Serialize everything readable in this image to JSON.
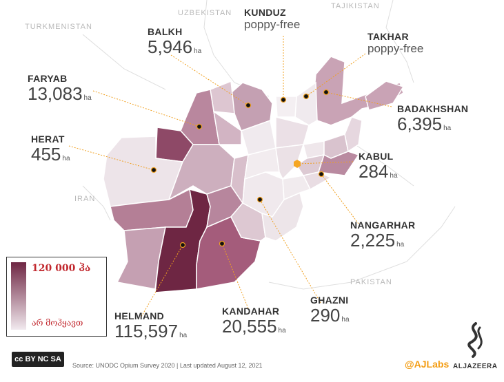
{
  "countries": [
    "UZBEKISTAN",
    "TAJIKISTAN",
    "TURKMENISTAN",
    "IRAN",
    "PAKISTAN"
  ],
  "provinces": {
    "kunduz": {
      "name": "KUNDUZ",
      "status": "poppy-free"
    },
    "takhar": {
      "name": "TAKHAR",
      "status": "poppy-free"
    },
    "balkh": {
      "name": "BALKH",
      "value": "5,946",
      "unit": "ha"
    },
    "faryab": {
      "name": "FARYAB",
      "value": "13,083",
      "unit": "ha"
    },
    "badakhshan": {
      "name": "BADAKHSHAN",
      "value": "6,395",
      "unit": "ha"
    },
    "herat": {
      "name": "HERAT",
      "value": "455",
      "unit": "ha"
    },
    "kabul": {
      "name": "KABUL",
      "value": "284",
      "unit": "ha"
    },
    "nangarhar": {
      "name": "NANGARHAR",
      "value": "2,225",
      "unit": "ha"
    },
    "ghazni": {
      "name": "GHAZNI",
      "value": "290",
      "unit": "ha"
    },
    "kandahar": {
      "name": "KANDAHAR",
      "value": "20,555",
      "unit": "ha"
    },
    "helmand": {
      "name": "HELMAND",
      "value": "115,597",
      "unit": "ha"
    }
  },
  "legend": {
    "max_label": "120 000 ჰა",
    "min_label": "არ მოჰყავთ",
    "max_color": "#6e2643",
    "min_color": "#f1e9ee"
  },
  "license": "cc BY NC SA",
  "source": "Source: UNODC Opium Survey 2020 | Last updated August 12, 2021",
  "handle": "@AJLabs",
  "brand": "ALJAZEERA",
  "colors": {
    "leader": "#f0a020",
    "marker": "#111111",
    "kabul_marker": "#f5a623",
    "border": "#ffffff"
  }
}
